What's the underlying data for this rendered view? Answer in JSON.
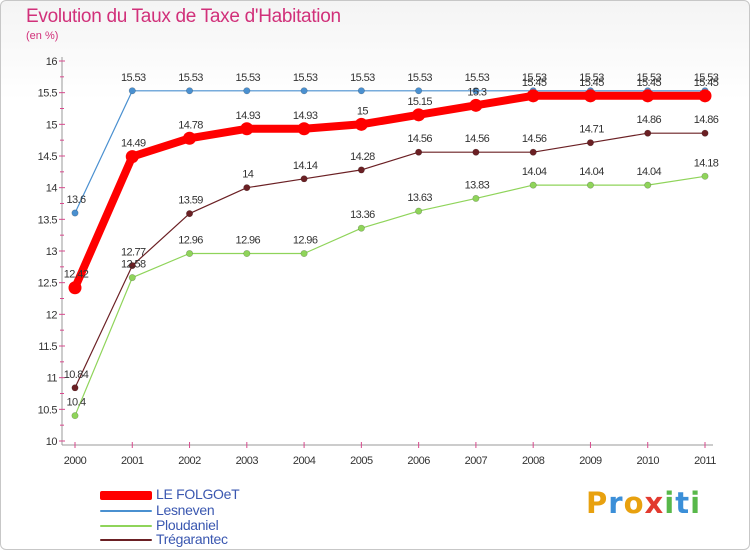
{
  "title": "Evolution du Taux de Taxe d'Habitation",
  "subtitle": "(en %)",
  "brand": {
    "letters": [
      "P",
      "r",
      "o",
      "x",
      "i",
      "t",
      "i"
    ],
    "colors": [
      "#e8a10f",
      "#3b8fd8",
      "#e8a10f",
      "#e23a2f",
      "#58b84a",
      "#3b8fd8",
      "#58b84a"
    ]
  },
  "chart_data": {
    "type": "line",
    "title": "Evolution du Taux de Taxe d'Habitation",
    "ylabel": "(en %)",
    "xlabel": "",
    "ylim": [
      10,
      16
    ],
    "y_ticks": [
      "10",
      "10.5",
      "11",
      "11.5",
      "12",
      "12.5",
      "13",
      "13.5",
      "14",
      "14.5",
      "15",
      "15.5",
      "16"
    ],
    "categories": [
      "2000",
      "2001",
      "2002",
      "2003",
      "2004",
      "2005",
      "2006",
      "2007",
      "2008",
      "2009",
      "2010",
      "2011"
    ],
    "grid": false,
    "legend": "bottom-left",
    "series": [
      {
        "name": "LE FOLGOeT",
        "color": "#ff0000",
        "values": [
          12.42,
          14.49,
          14.78,
          14.93,
          14.93,
          15,
          15.15,
          15.3,
          15.45,
          15.45,
          15.45,
          15.45
        ],
        "labels": [
          "12.42",
          "14.49",
          "14.78",
          "14.93",
          "14.93",
          "15",
          "15.15",
          "15.3",
          "15.45",
          "15.45",
          "15.45",
          "15.45"
        ]
      },
      {
        "name": "Lesneven",
        "color": "#4a90d0",
        "values": [
          13.6,
          15.53,
          15.53,
          15.53,
          15.53,
          15.53,
          15.53,
          15.53,
          15.53,
          15.53,
          15.53,
          15.53
        ],
        "labels": [
          "13.6",
          "15.53",
          "15.53",
          "15.53",
          "15.53",
          "15.53",
          "15.53",
          "15.53",
          "15.53",
          "15.53",
          "15.53",
          "15.53"
        ]
      },
      {
        "name": "Ploudaniel",
        "color": "#8fd45a",
        "values": [
          10.4,
          12.58,
          12.96,
          12.96,
          12.96,
          13.36,
          13.63,
          13.83,
          14.04,
          14.04,
          14.04,
          14.18
        ],
        "labels": [
          "10.4",
          "12.58",
          "12.96",
          "12.96",
          "12.96",
          "13.36",
          "13.63",
          "13.83",
          "14.04",
          "14.04",
          "14.04",
          "14.18"
        ]
      },
      {
        "name": "Trégarantec",
        "color": "#6b2024",
        "values": [
          10.84,
          12.77,
          13.59,
          14,
          14.14,
          14.28,
          14.56,
          14.56,
          14.56,
          14.71,
          14.86,
          14.86
        ],
        "labels": [
          "10.84",
          "12.77",
          "13.59",
          "14",
          "14.14",
          "14.28",
          "14.56",
          "14.56",
          "14.56",
          "14.71",
          "14.86",
          "14.86"
        ]
      }
    ]
  }
}
